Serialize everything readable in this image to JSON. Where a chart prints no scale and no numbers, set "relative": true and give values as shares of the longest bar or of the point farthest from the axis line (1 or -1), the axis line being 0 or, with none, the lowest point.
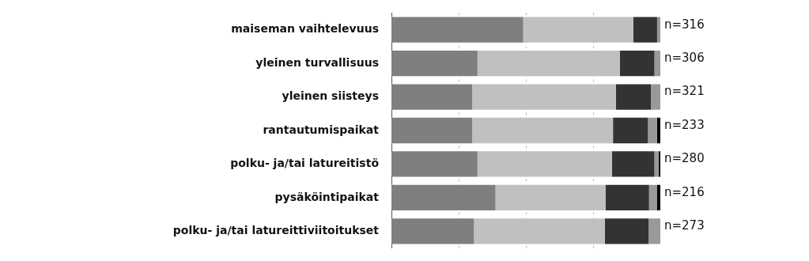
{
  "chart_data": {
    "type": "bar",
    "orientation": "horizontal",
    "stacked": true,
    "relative": true,
    "grid": "x",
    "categories": [
      "maiseman vaihtelevuus",
      "yleinen turvallisuus",
      "yleinen siisteys",
      "rantautumispaikat",
      "polku- ja/tai latureitistö",
      "pysäköintipaikat",
      "polku- ja/tai latureittiviitoitukset"
    ],
    "series": [
      {
        "color": "#7f7f7f",
        "values": [
          0.49,
          0.32,
          0.3,
          0.3,
          0.32,
          0.387,
          0.307
        ]
      },
      {
        "color": "#c0c0c0",
        "values": [
          0.41,
          0.53,
          0.535,
          0.524,
          0.5,
          0.409,
          0.487
        ]
      },
      {
        "color": "#333333",
        "values": [
          0.088,
          0.128,
          0.13,
          0.13,
          0.158,
          0.162,
          0.162
        ]
      },
      {
        "color": "#999999",
        "values": [
          0.012,
          0.022,
          0.035,
          0.034,
          0.016,
          0.029,
          0.044
        ]
      },
      {
        "color": "#000000",
        "values": [
          null,
          null,
          null,
          0.012,
          0.006,
          0.013,
          null
        ]
      }
    ],
    "annotations": [
      "n=316",
      "n=306",
      "n=321",
      "n=233",
      "n=280",
      "n=216",
      "n=273"
    ]
  }
}
